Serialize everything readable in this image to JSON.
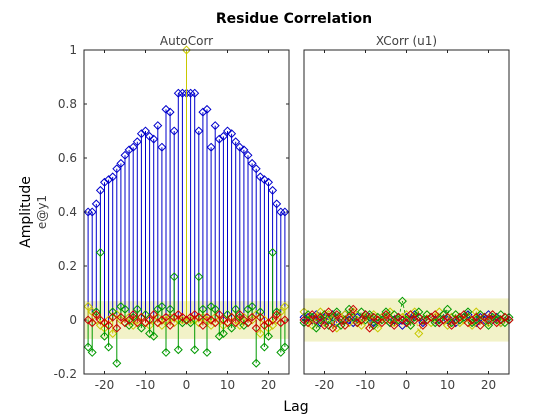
{
  "figure": {
    "title": "Residue Correlation",
    "ylabel": "Amplitude",
    "ylabel_sub": "e@y1",
    "xlabel": "Lag"
  },
  "chart_data": [
    {
      "type": "stem",
      "title": "AutoCorr",
      "xlim": [
        -25,
        25
      ],
      "ylim": [
        -0.2,
        1
      ],
      "xticks": [
        -20,
        -10,
        0,
        10,
        20
      ],
      "yticks": [
        -0.2,
        0,
        0.2,
        0.4,
        0.6,
        0.8,
        1
      ],
      "ytick_labels": [
        "-0.2",
        "0",
        "0.2",
        "0.4",
        "0.6",
        "0.8",
        "1"
      ],
      "confidence_band": [
        -0.07,
        0.07
      ],
      "colors": {
        "band": "#f2f2c8",
        "frame": "#262626",
        "tick_text": "#404040"
      },
      "lags": [
        -24,
        -23,
        -22,
        -21,
        -20,
        -19,
        -18,
        -17,
        -16,
        -15,
        -14,
        -13,
        -12,
        -11,
        -10,
        -9,
        -8,
        -7,
        -6,
        -5,
        -4,
        -3,
        -2,
        -1,
        0,
        1,
        2,
        3,
        4,
        5,
        6,
        7,
        8,
        9,
        10,
        11,
        12,
        13,
        14,
        15,
        16,
        17,
        18,
        19,
        20,
        21,
        22,
        23,
        24
      ],
      "series": [
        {
          "color": "#0000cc",
          "values": [
            0.4,
            0.4,
            0.43,
            0.48,
            0.51,
            0.52,
            0.53,
            0.56,
            0.58,
            0.61,
            0.63,
            0.64,
            0.66,
            0.69,
            0.7,
            0.68,
            0.67,
            0.72,
            0.64,
            0.78,
            0.77,
            0.7,
            0.84,
            0.84,
            0.84,
            0.84,
            0.84,
            0.7,
            0.77,
            0.78,
            0.64,
            0.72,
            0.67,
            0.68,
            0.7,
            0.69,
            0.66,
            0.64,
            0.63,
            0.61,
            0.58,
            0.56,
            0.53,
            0.52,
            0.51,
            0.48,
            0.43,
            0.4,
            0.4
          ]
        },
        {
          "color": "#c8c800",
          "values": [
            0.05,
            0.03,
            0.0,
            -0.02,
            -0.03,
            0.0,
            -0.05,
            0.02,
            0.0,
            -0.01,
            0.01,
            -0.02,
            0.0,
            0.01,
            -0.01,
            -0.02,
            0.0,
            0.01,
            -0.02,
            0.0,
            0.01,
            -0.01,
            0.0,
            0.0,
            1.0,
            0.0,
            0.0,
            -0.01,
            0.01,
            0.0,
            -0.02,
            0.01,
            0.0,
            -0.02,
            -0.01,
            0.01,
            0.0,
            -0.02,
            0.01,
            -0.01,
            0.0,
            0.02,
            -0.05,
            0.0,
            -0.03,
            -0.02,
            0.0,
            0.03,
            0.05
          ]
        },
        {
          "color": "#009900",
          "values": [
            -0.1,
            -0.12,
            0.03,
            0.25,
            -0.06,
            -0.1,
            0.03,
            -0.16,
            0.05,
            0.04,
            -0.02,
            0.01,
            0.04,
            -0.03,
            0.02,
            -0.05,
            -0.06,
            0.04,
            0.05,
            -0.12,
            0.04,
            0.16,
            -0.11,
            -0.01,
            0.0,
            -0.01,
            -0.11,
            0.16,
            0.04,
            -0.12,
            0.05,
            0.04,
            -0.06,
            -0.05,
            0.02,
            -0.03,
            0.04,
            0.01,
            -0.02,
            0.04,
            0.05,
            -0.16,
            0.03,
            -0.1,
            -0.06,
            0.25,
            0.03,
            -0.12,
            -0.1
          ]
        },
        {
          "color": "#cc0000",
          "values": [
            0.0,
            -0.01,
            0.02,
            0.0,
            -0.01,
            -0.02,
            0.01,
            -0.03,
            0.01,
            -0.01,
            0.0,
            0.02,
            -0.01,
            0.01,
            -0.01,
            0.0,
            0.02,
            -0.01,
            0.0,
            0.01,
            -0.02,
            0.01,
            0.02,
            0.01,
            0.0,
            0.01,
            0.02,
            0.01,
            -0.02,
            0.01,
            0.0,
            -0.01,
            0.02,
            0.0,
            -0.01,
            0.01,
            -0.01,
            0.02,
            0.0,
            -0.01,
            0.01,
            -0.03,
            0.01,
            -0.02,
            -0.01,
            0.0,
            0.02,
            -0.01,
            0.0
          ]
        }
      ]
    },
    {
      "type": "scatter",
      "title": "XCorr (u1)",
      "xlim": [
        -25,
        25
      ],
      "ylim": [
        -0.2,
        1
      ],
      "xticks": [
        -20,
        -10,
        0,
        10,
        20
      ],
      "confidence_band": [
        -0.08,
        0.08
      ],
      "colors": {
        "band": "#f2f2c8",
        "frame": "#262626",
        "tick_text": "#404040"
      },
      "lags": [
        -25,
        -24,
        -23,
        -22,
        -21,
        -20,
        -19,
        -18,
        -17,
        -16,
        -15,
        -14,
        -13,
        -12,
        -11,
        -10,
        -9,
        -8,
        -7,
        -6,
        -5,
        -4,
        -3,
        -2,
        -1,
        0,
        1,
        2,
        3,
        4,
        5,
        6,
        7,
        8,
        9,
        10,
        11,
        12,
        13,
        14,
        15,
        16,
        17,
        18,
        19,
        20,
        21,
        22,
        23,
        24,
        25
      ],
      "series": [
        {
          "color": "#0000cc",
          "values": [
            0.01,
            0.01,
            0.0,
            0.02,
            -0.01,
            0.01,
            0.0,
            0.02,
            -0.01,
            0.01,
            0.02,
            0.0,
            -0.01,
            0.01,
            0.0,
            0.02,
            0.01,
            -0.01,
            0.0,
            0.01,
            0.02,
            -0.01,
            0.0,
            0.01,
            -0.02,
            0.01,
            0.0,
            0.02,
            0.01,
            -0.01,
            0.0,
            0.01,
            0.0,
            -0.01,
            0.02,
            0.0,
            0.01,
            -0.01,
            0.0,
            0.01,
            0.02,
            0.0,
            -0.01,
            0.01,
            0.0,
            0.02,
            0.0,
            0.01,
            -0.01,
            0.01,
            0.0
          ]
        },
        {
          "color": "#c8c800",
          "values": [
            0.03,
            0.0,
            -0.02,
            0.01,
            0.03,
            -0.01,
            0.02,
            0.0,
            -0.03,
            0.01,
            0.02,
            -0.01,
            0.03,
            0.0,
            -0.02,
            0.01,
            0.0,
            0.02,
            -0.03,
            0.01,
            0.0,
            0.03,
            -0.01,
            0.0,
            0.01,
            0.02,
            -0.02,
            0.03,
            -0.05,
            0.0,
            0.02,
            -0.01,
            0.01,
            0.03,
            0.0,
            -0.02,
            0.01,
            0.02,
            -0.01,
            0.0,
            0.01,
            -0.02,
            0.03,
            0.0,
            0.01,
            -0.01,
            0.02,
            0.0,
            -0.01,
            0.01,
            0.0
          ]
        },
        {
          "color": "#009900",
          "values": [
            -0.01,
            0.02,
            0.01,
            -0.03,
            0.0,
            0.02,
            -0.02,
            0.01,
            0.03,
            -0.02,
            0.0,
            0.04,
            0.01,
            -0.01,
            0.03,
            0.0,
            0.02,
            -0.02,
            0.01,
            0.0,
            0.03,
            -0.01,
            0.02,
            0.0,
            0.07,
            0.0,
            -0.02,
            0.01,
            0.03,
            0.0,
            0.02,
            0.01,
            -0.01,
            0.0,
            0.02,
            0.04,
            -0.01,
            0.02,
            0.0,
            0.01,
            0.03,
            -0.01,
            0.0,
            0.02,
            0.01,
            -0.02,
            0.01,
            0.0,
            0.02,
            -0.01,
            0.01
          ]
        },
        {
          "color": "#cc0000",
          "values": [
            0.0,
            -0.01,
            0.02,
            0.0,
            0.01,
            -0.02,
            0.03,
            -0.03,
            0.02,
            0.0,
            -0.02,
            0.01,
            0.04,
            -0.01,
            0.0,
            0.02,
            -0.03,
            0.01,
            0.0,
            -0.01,
            0.02,
            0.0,
            -0.02,
            0.01,
            0.0,
            -0.01,
            0.02,
            0.0,
            0.01,
            -0.02,
            0.0,
            0.01,
            0.02,
            -0.01,
            0.0,
            0.01,
            -0.02,
            0.0,
            0.01,
            0.02,
            -0.01,
            0.0,
            0.01,
            -0.02,
            0.01,
            0.0,
            0.02,
            -0.01,
            0.0,
            0.01,
            0.0
          ]
        }
      ]
    }
  ]
}
